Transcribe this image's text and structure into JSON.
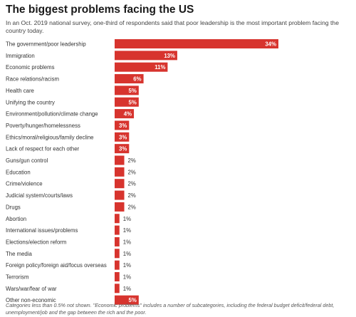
{
  "title": "The biggest problems facing the US",
  "subtitle": "In an Oct. 2019 national survey, one-third of respondents said that poor leadership is the most important problem facing the country today.",
  "footnote": "Categories less than 0.5% not shown. \"Economic problems\" includes a number of subcategories, including the federal budget deficit/federal debt, unemployment/job and the gap between the rich and the poor.",
  "colors": {
    "bar": "#d7342e",
    "label_inside": "#ffffff",
    "label_outside": "#333333"
  },
  "chart_data": {
    "type": "bar",
    "orientation": "horizontal",
    "value_suffix": "%",
    "grid": false,
    "categories": [
      "The government/poor leadership",
      "Immigration",
      "Economic problems",
      "Race relations/racism",
      "Health care",
      "Unifying the country",
      "Environment/pollution/climate change",
      "Poverty/hunger/homelessness",
      "Ethics/moral/religious/family decline",
      "Lack of respect for each other",
      "Guns/gun control",
      "Education",
      "Crime/violence",
      "Judicial system/courts/laws",
      "Drugs",
      "Abortion",
      "International issues/problems",
      "Elections/election reform",
      "The media",
      "Foreign policy/foreign aid/focus overseas",
      "Terrorism",
      "Wars/war/fear of war",
      "Other non-economic"
    ],
    "values": [
      34,
      13,
      11,
      6,
      5,
      5,
      4,
      3,
      3,
      3,
      2,
      2,
      2,
      2,
      2,
      1,
      1,
      1,
      1,
      1,
      1,
      1,
      5
    ],
    "xlim": [
      0,
      34
    ]
  }
}
